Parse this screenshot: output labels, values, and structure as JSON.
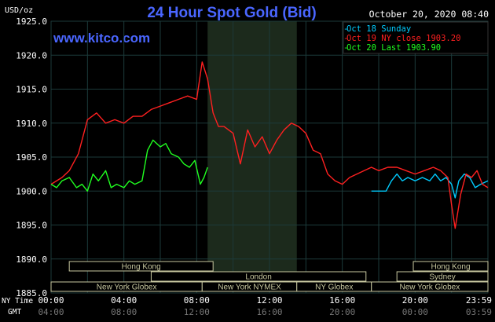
{
  "header": {
    "title": "24 Hour Spot Gold (Bid)",
    "unit": "USD/oz",
    "datetime": "October 20, 2020 08:40",
    "site": "www.kitco.com"
  },
  "legend": [
    {
      "label": "Oct 18 Sunday",
      "color": "#00ccff"
    },
    {
      "label": "Oct 19 NY close 1903.20",
      "color": "#ff2020"
    },
    {
      "label": "Oct 20 Last 1903.90",
      "color": "#20ff20"
    }
  ],
  "colors": {
    "title": "#4a66ff",
    "site": "#4a66ff",
    "text": "#ffffff",
    "grid": "#1c3a3a",
    "shade": "#1c2a1c",
    "session_border": "#c8c8a0"
  },
  "sessions": [
    {
      "label": "Hong Kong",
      "row": 0,
      "start_h": 1.0,
      "end_h": 8.9
    },
    {
      "label": "Hong Kong",
      "row": 0,
      "start_h": 19.9,
      "end_h": 24.0
    },
    {
      "label": "London",
      "row": 1,
      "start_h": 5.5,
      "end_h": 17.3
    },
    {
      "label": "Sydney",
      "row": 1,
      "start_h": 19.0,
      "end_h": 24.0
    },
    {
      "label": "New York Globex",
      "row": 2,
      "start_h": 0.0,
      "end_h": 8.3
    },
    {
      "label": "New York NYMEX",
      "row": 2,
      "start_h": 8.3,
      "end_h": 13.5
    },
    {
      "label": "NY Globex",
      "row": 2,
      "start_h": 13.5,
      "end_h": 17.6
    },
    {
      "label": "New York Globex",
      "row": 2,
      "start_h": 17.6,
      "end_h": 24.0
    }
  ],
  "footer": {
    "row1_label": "NY Time",
    "row2_label": "GMT",
    "ny_ticks": [
      "00:00",
      "04:00",
      "08:00",
      "12:00",
      "16:00",
      "20:00",
      "23:59"
    ],
    "gmt_ticks": [
      "04:00",
      "08:00",
      "12:00",
      "16:00",
      "20:00",
      "00:00",
      "03:59"
    ]
  },
  "chart_data": {
    "type": "line",
    "title": "24 Hour Spot Gold (Bid)",
    "ylabel": "USD/oz",
    "xlabel": "NY Time",
    "xlim": [
      0,
      24
    ],
    "ylim": [
      1885,
      1925
    ],
    "yticks": [
      "1885.0",
      "1890.0",
      "1895.0",
      "1900.0",
      "1905.0",
      "1910.0",
      "1915.0",
      "1920.0",
      "1925.0"
    ],
    "grid": true,
    "shaded_hours": [
      8.6,
      13.5
    ],
    "legend_position": "top-right",
    "series": [
      {
        "name": "Oct 18 Sunday",
        "color": "#00ccff",
        "x": [
          17.6,
          18.4,
          18.7,
          19.0,
          19.3,
          19.6,
          20.0,
          20.4,
          20.8,
          21.1,
          21.4,
          21.7,
          22.0,
          22.2,
          22.4,
          22.7,
          23.0,
          23.3,
          23.6,
          24.0
        ],
        "y": [
          1900.0,
          1900.0,
          1901.5,
          1902.5,
          1901.5,
          1902.0,
          1901.5,
          1902.0,
          1901.5,
          1902.5,
          1901.5,
          1902.0,
          1901.0,
          1899.0,
          1901.5,
          1902.5,
          1902.0,
          1900.5,
          1901.0,
          1901.5
        ]
      },
      {
        "name": "Oct 19 NY close 1903.20",
        "color": "#ff2020",
        "x": [
          0.0,
          0.6,
          1.0,
          1.5,
          2.0,
          2.5,
          3.0,
          3.5,
          4.0,
          4.5,
          5.0,
          5.5,
          6.0,
          6.5,
          7.0,
          7.5,
          8.0,
          8.3,
          8.6,
          8.9,
          9.2,
          9.5,
          10.0,
          10.4,
          10.8,
          11.2,
          11.6,
          12.0,
          12.4,
          12.8,
          13.2,
          13.6,
          14.0,
          14.4,
          14.8,
          15.2,
          15.6,
          16.0,
          16.4,
          16.8,
          17.2,
          17.6,
          18.0,
          18.5,
          19.0,
          19.5,
          20.0,
          20.5,
          21.0,
          21.4,
          21.8,
          22.0,
          22.2,
          22.5,
          22.8,
          23.1,
          23.4,
          23.7,
          24.0
        ],
        "y": [
          1901.0,
          1902.0,
          1903.0,
          1905.5,
          1910.5,
          1911.5,
          1910.0,
          1910.5,
          1910.0,
          1911.0,
          1911.0,
          1912.0,
          1912.5,
          1913.0,
          1913.5,
          1914.0,
          1913.5,
          1919.0,
          1916.5,
          1911.5,
          1909.5,
          1909.5,
          1908.5,
          1904.0,
          1909.0,
          1906.5,
          1908.0,
          1905.5,
          1907.5,
          1909.0,
          1910.0,
          1909.5,
          1908.5,
          1906.0,
          1905.5,
          1902.5,
          1901.5,
          1901.0,
          1902.0,
          1902.5,
          1903.0,
          1903.5,
          1903.0,
          1903.5,
          1903.5,
          1903.0,
          1902.5,
          1903.0,
          1903.5,
          1903.0,
          1902.0,
          1898.0,
          1894.5,
          1899.5,
          1902.5,
          1902.0,
          1903.0,
          1901.0,
          1900.5
        ]
      },
      {
        "name": "Oct 20 Last 1903.90",
        "color": "#20ff20",
        "x": [
          0.0,
          0.3,
          0.6,
          1.0,
          1.4,
          1.7,
          2.0,
          2.3,
          2.6,
          3.0,
          3.3,
          3.6,
          4.0,
          4.3,
          4.6,
          5.0,
          5.3,
          5.6,
          6.0,
          6.3,
          6.6,
          7.0,
          7.3,
          7.6,
          7.9,
          8.2,
          8.4,
          8.6
        ],
        "y": [
          1901.0,
          1900.5,
          1901.5,
          1902.0,
          1900.5,
          1901.0,
          1900.0,
          1902.5,
          1901.5,
          1903.0,
          1900.5,
          1901.0,
          1900.5,
          1901.5,
          1901.0,
          1901.5,
          1906.0,
          1907.5,
          1906.5,
          1907.0,
          1905.5,
          1905.0,
          1904.0,
          1903.5,
          1904.5,
          1901.0,
          1902.0,
          1903.5
        ]
      }
    ]
  }
}
